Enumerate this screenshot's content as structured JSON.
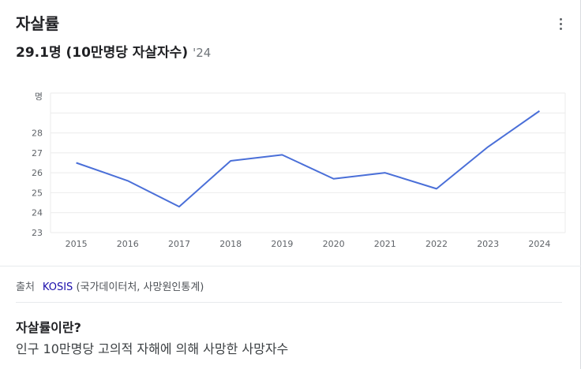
{
  "header": {
    "title": "자살률",
    "value_text": "29.1명 (10만명당 자살자수)",
    "year_tag": "'24"
  },
  "chart_data": {
    "type": "line",
    "unit_label": "명",
    "x": [
      "2015",
      "2016",
      "2017",
      "2018",
      "2019",
      "2020",
      "2021",
      "2022",
      "2023",
      "2024"
    ],
    "series": [
      {
        "values": [
          26.5,
          25.6,
          24.3,
          26.6,
          26.9,
          25.7,
          26.0,
          25.2,
          27.3,
          29.1
        ]
      }
    ],
    "y_ticks": [
      "23",
      "24",
      "25",
      "26",
      "27",
      "28"
    ],
    "ylim": [
      23,
      30
    ],
    "grid": true,
    "line_color": "#4a6fd8"
  },
  "source": {
    "label": "출처",
    "link_text": "KOSIS",
    "detail": " (국가데이터처, 사망원인통계)"
  },
  "definition": {
    "title": "자살률이란?",
    "text": "인구 10만명당 고의적 자해에 의해 사망한 사망자수"
  }
}
